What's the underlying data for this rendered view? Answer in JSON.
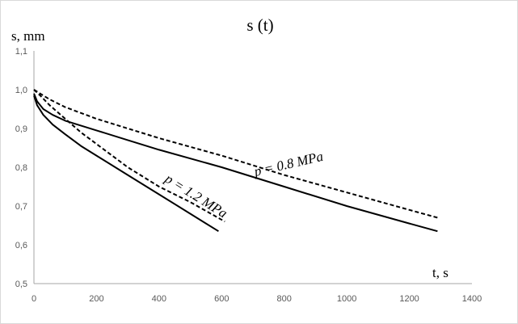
{
  "chart_data": {
    "type": "line",
    "title": "s (t)",
    "ylabel": "s, mm",
    "xlabel": "t, s",
    "xlim": [
      0,
      1400
    ],
    "ylim": [
      0.5,
      1.1
    ],
    "x_ticks": [
      "0",
      "200",
      "400",
      "600",
      "800",
      "1000",
      "1200",
      "1400"
    ],
    "y_ticks": [
      "0,5",
      "0,6",
      "0,7",
      "0,8",
      "0,9",
      "1,0",
      "1,1"
    ],
    "grid": false,
    "legend": "none",
    "annotations": [
      {
        "text": "p = 0.8 MPa",
        "near_series": "s-0.8-solid"
      },
      {
        "text": "p = 1.2 MPa",
        "near_series": "s-1.2-solid"
      }
    ],
    "series": [
      {
        "id": "s-1.2-solid",
        "style": "solid",
        "x": [
          0,
          10,
          30,
          60,
          100,
          150,
          200,
          300,
          400,
          500,
          590
        ],
        "y": [
          0.985,
          0.96,
          0.935,
          0.91,
          0.885,
          0.855,
          0.83,
          0.78,
          0.73,
          0.68,
          0.635
        ]
      },
      {
        "id": "s-1.2-dashed",
        "style": "dashed",
        "x": [
          0,
          20,
          50,
          100,
          150,
          200,
          300,
          400,
          500,
          610
        ],
        "y": [
          1.0,
          0.985,
          0.96,
          0.925,
          0.89,
          0.86,
          0.8,
          0.75,
          0.71,
          0.66
        ]
      },
      {
        "id": "s-0.8-solid",
        "style": "solid",
        "x": [
          0,
          10,
          30,
          60,
          100,
          200,
          300,
          400,
          600,
          800,
          1000,
          1200,
          1290
        ],
        "y": [
          0.99,
          0.97,
          0.95,
          0.935,
          0.92,
          0.895,
          0.87,
          0.845,
          0.8,
          0.75,
          0.7,
          0.655,
          0.635
        ]
      },
      {
        "id": "s-0.8-dashed",
        "style": "dashed",
        "x": [
          0,
          20,
          50,
          100,
          200,
          300,
          400,
          600,
          800,
          1000,
          1200,
          1290
        ],
        "y": [
          1.0,
          0.99,
          0.975,
          0.955,
          0.925,
          0.9,
          0.875,
          0.83,
          0.78,
          0.735,
          0.69,
          0.67
        ]
      }
    ],
    "colors": {
      "line": "#000000",
      "axis": "#a6a6a6",
      "tick_text": "#595959"
    }
  }
}
